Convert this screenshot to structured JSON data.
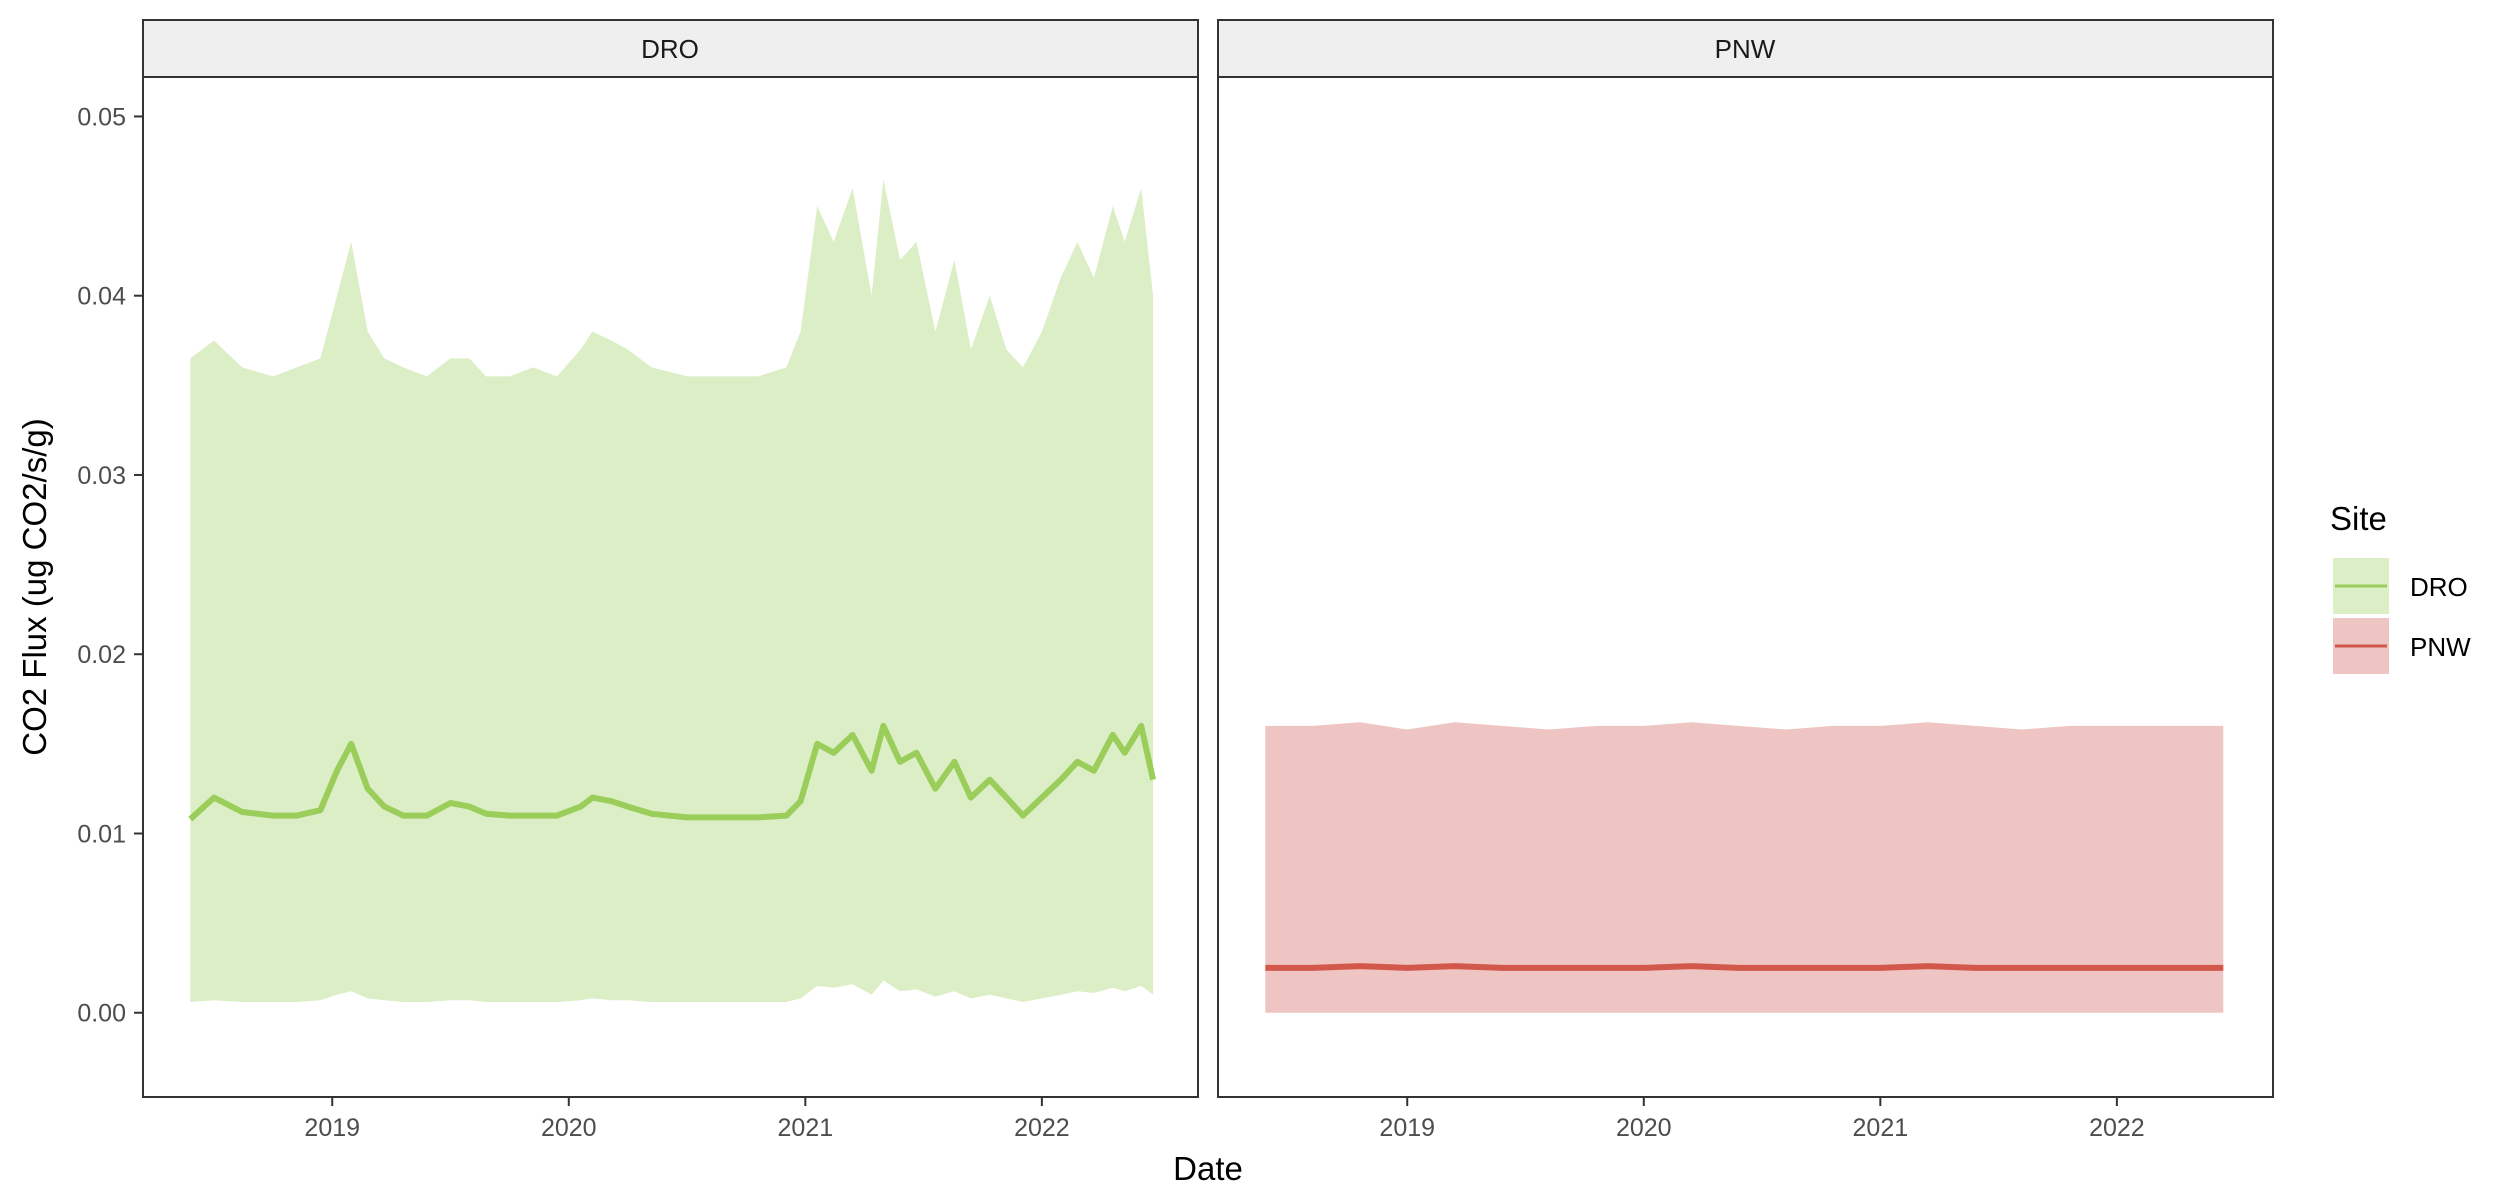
{
  "chart_data": {
    "type": "area",
    "xlabel": "Date",
    "ylabel": "CO2 Flux (ug CO2/s/g)",
    "ylim": [
      -0.0047,
      0.0522
    ],
    "yticks": [
      0.0,
      0.01,
      0.02,
      0.03,
      0.04,
      0.05
    ],
    "ytick_labels": [
      "0.00",
      "0.01",
      "0.02",
      "0.03",
      "0.04",
      "0.05"
    ],
    "xlim": [
      2018.2,
      2022.66
    ],
    "xticks": [
      2019,
      2020,
      2021,
      2022
    ],
    "xtick_labels": [
      "2019",
      "2020",
      "2021",
      "2022"
    ],
    "grid": false,
    "legend": {
      "title": "Site",
      "position": "right",
      "entries": [
        {
          "label": "DRO",
          "color": "#9ACD5A",
          "fill": "#DCEEC6"
        },
        {
          "label": "PNW",
          "color": "#D2584C",
          "fill": "#EEC5C2"
        }
      ]
    },
    "panels": [
      {
        "strip": "DRO",
        "color": "#9ACD5A",
        "ribbon_color": "#DCEEC6",
        "x": [
          2018.4,
          2018.5,
          2018.62,
          2018.75,
          2018.85,
          2018.95,
          2019.02,
          2019.08,
          2019.15,
          2019.22,
          2019.3,
          2019.4,
          2019.5,
          2019.58,
          2019.65,
          2019.75,
          2019.85,
          2019.95,
          2020.05,
          2020.1,
          2020.18,
          2020.25,
          2020.35,
          2020.5,
          2020.65,
          2020.8,
          2020.92,
          2020.98,
          2021.05,
          2021.12,
          2021.2,
          2021.28,
          2021.33,
          2021.4,
          2021.47,
          2021.55,
          2021.63,
          2021.7,
          2021.78,
          2021.85,
          2021.92,
          2022.0,
          2022.08,
          2022.15,
          2022.22,
          2022.3,
          2022.35,
          2022.42,
          2022.47
        ],
        "y": [
          0.0108,
          0.012,
          0.0112,
          0.011,
          0.011,
          0.0113,
          0.0135,
          0.015,
          0.0125,
          0.0115,
          0.011,
          0.011,
          0.0117,
          0.0115,
          0.0111,
          0.011,
          0.011,
          0.011,
          0.0115,
          0.012,
          0.0118,
          0.0115,
          0.0111,
          0.0109,
          0.0109,
          0.0109,
          0.011,
          0.0118,
          0.015,
          0.0145,
          0.0155,
          0.0135,
          0.016,
          0.014,
          0.0145,
          0.0125,
          0.014,
          0.012,
          0.013,
          0.012,
          0.011,
          0.012,
          0.013,
          0.014,
          0.0135,
          0.0155,
          0.0145,
          0.016,
          0.013
        ],
        "upper": [
          0.0365,
          0.0375,
          0.036,
          0.0355,
          0.036,
          0.0365,
          0.04,
          0.043,
          0.038,
          0.0365,
          0.036,
          0.0355,
          0.0365,
          0.0365,
          0.0355,
          0.0355,
          0.036,
          0.0355,
          0.037,
          0.038,
          0.0375,
          0.037,
          0.036,
          0.0355,
          0.0355,
          0.0355,
          0.036,
          0.038,
          0.045,
          0.043,
          0.046,
          0.04,
          0.0465,
          0.042,
          0.043,
          0.038,
          0.042,
          0.037,
          0.04,
          0.037,
          0.036,
          0.038,
          0.041,
          0.043,
          0.041,
          0.045,
          0.043,
          0.046,
          0.04
        ],
        "lower": [
          0.0006,
          0.0007,
          0.0006,
          0.0006,
          0.0006,
          0.0007,
          0.001,
          0.0012,
          0.0008,
          0.0007,
          0.0006,
          0.0006,
          0.0007,
          0.0007,
          0.0006,
          0.0006,
          0.0006,
          0.0006,
          0.0007,
          0.0008,
          0.0007,
          0.0007,
          0.0006,
          0.0006,
          0.0006,
          0.0006,
          0.0006,
          0.0008,
          0.0015,
          0.0014,
          0.0016,
          0.001,
          0.0018,
          0.0012,
          0.0013,
          0.0009,
          0.0012,
          0.0008,
          0.001,
          0.0008,
          0.0006,
          0.0008,
          0.001,
          0.0012,
          0.0011,
          0.0014,
          0.0012,
          0.0015,
          0.001
        ]
      },
      {
        "strip": "PNW",
        "color": "#D2584C",
        "ribbon_color": "#EEC5C2",
        "x": [
          2018.4,
          2018.6,
          2018.8,
          2019.0,
          2019.2,
          2019.4,
          2019.6,
          2019.8,
          2020.0,
          2020.2,
          2020.4,
          2020.6,
          2020.8,
          2021.0,
          2021.2,
          2021.4,
          2021.6,
          2021.8,
          2022.0,
          2022.2,
          2022.45
        ],
        "y": [
          0.0025,
          0.0025,
          0.0026,
          0.0025,
          0.0026,
          0.0025,
          0.0025,
          0.0025,
          0.0025,
          0.0026,
          0.0025,
          0.0025,
          0.0025,
          0.0025,
          0.0026,
          0.0025,
          0.0025,
          0.0025,
          0.0025,
          0.0025,
          0.0025
        ],
        "upper": [
          0.016,
          0.016,
          0.0162,
          0.0158,
          0.0162,
          0.016,
          0.0158,
          0.016,
          0.016,
          0.0162,
          0.016,
          0.0158,
          0.016,
          0.016,
          0.0162,
          0.016,
          0.0158,
          0.016,
          0.016,
          0.016,
          0.016
        ],
        "lower": [
          0.0,
          0.0,
          0.0,
          0.0,
          0.0,
          0.0,
          0.0,
          0.0,
          0.0,
          0.0,
          0.0,
          0.0,
          0.0,
          0.0,
          0.0,
          0.0,
          0.0,
          0.0,
          0.0,
          0.0,
          0.0
        ]
      }
    ]
  }
}
